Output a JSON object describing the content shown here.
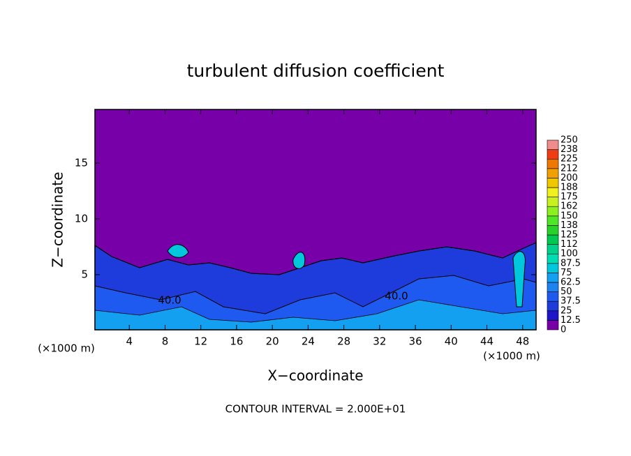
{
  "chart_data": {
    "type": "contour",
    "title": "turbulent diffusion coefficient",
    "x_label": "X−coordinate",
    "y_label": "Z−coordinate",
    "x_unit_label": "(×1000 m)",
    "y_unit_label": "(×1000 m)",
    "xlim": [
      0,
      49.5
    ],
    "ylim": [
      0,
      19.8
    ],
    "xticks": [
      4,
      8,
      12,
      16,
      20,
      24,
      28,
      32,
      36,
      40,
      44,
      48
    ],
    "yticks": [
      5,
      10,
      15
    ],
    "contour_labels": [
      "40.0",
      "40.0"
    ],
    "footnote": "CONTOUR INTERVAL = 2.000E+01",
    "colorbar": {
      "levels": [
        0,
        12.5,
        25,
        37.5,
        50,
        62.5,
        75,
        87.5,
        100,
        {
          "value": 112.5,
          "label": "112"
        },
        125,
        {
          "value": 137.5,
          "label": "138"
        },
        150,
        {
          "value": 162.5,
          "label": "162"
        },
        175,
        {
          "value": 187.5,
          "label": "188"
        },
        200,
        {
          "value": 212.5,
          "label": "212"
        },
        225,
        {
          "value": 237.5,
          "label": "238"
        },
        250
      ],
      "colors": [
        "#7800a8",
        "#1e14c8",
        "#1e3cdc",
        "#1e5af0",
        "#1e82f0",
        "#14a0f0",
        "#00c8dc",
        "#00dcb4",
        "#00d28c",
        "#00c850",
        "#28d228",
        "#50e628",
        "#8cf01e",
        "#c8f01e",
        "#f0f01e",
        "#f0c800",
        "#f0a000",
        "#f07800",
        "#f03c14",
        "#f08c8c"
      ]
    }
  }
}
